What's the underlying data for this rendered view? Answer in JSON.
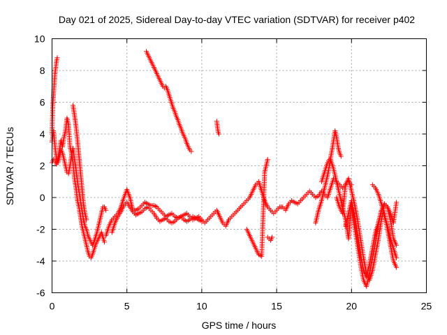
{
  "chart_data": {
    "type": "scatter",
    "title": "Day 021 of 2025, Sidereal Day-to-day VTEC variation (SDTVAR) for receiver p402",
    "xlabel": "GPS time / hours",
    "ylabel": "SDTVAR / TECUs",
    "xlim": [
      0,
      25
    ],
    "ylim": [
      -6,
      10
    ],
    "xticks": [
      0,
      5,
      10,
      15,
      20,
      25
    ],
    "yticks": [
      -6,
      -4,
      -2,
      0,
      2,
      4,
      6,
      8,
      10
    ],
    "grid": true,
    "marker": "+",
    "color": "#ff0000",
    "series": [
      {
        "name": "s1",
        "x": [
          0.0,
          0.05,
          0.1,
          0.15,
          0.2,
          0.25,
          0.3,
          0.35
        ],
        "y": [
          4.0,
          5.8,
          6.5,
          7.2,
          7.8,
          8.2,
          8.6,
          8.8
        ]
      },
      {
        "name": "s2",
        "x": [
          0.0,
          0.1,
          0.2,
          0.3,
          0.4,
          0.5,
          0.6,
          0.7,
          0.8,
          0.9,
          1.0,
          1.1,
          1.2,
          1.3,
          1.4,
          1.5,
          1.6,
          1.7,
          1.8,
          1.9,
          2.0,
          2.1,
          2.2,
          2.3,
          2.4,
          2.5,
          2.6,
          2.7,
          2.8,
          2.9,
          3.0,
          3.1,
          3.2,
          3.3,
          3.4,
          3.5
        ],
        "y": [
          2.2,
          2.4,
          2.3,
          2.1,
          2.5,
          3.0,
          3.6,
          3.2,
          3.8,
          4.2,
          5.0,
          4.6,
          3.2,
          2.8,
          2.2,
          1.2,
          0.6,
          -0.2,
          -0.6,
          -1.2,
          -1.8,
          -2.2,
          -2.6,
          -3.0,
          -3.4,
          -3.7,
          -3.8,
          -3.6,
          -3.3,
          -3.0,
          -2.8,
          -2.6,
          -2.4,
          -2.2,
          -2.5,
          -2.8
        ]
      },
      {
        "name": "s3",
        "x": [
          0.0,
          0.1,
          0.2,
          0.3,
          0.4,
          0.5,
          0.6,
          0.7,
          0.8,
          0.9,
          1.0,
          1.1,
          1.2,
          1.3,
          1.4,
          1.5,
          1.6,
          1.7,
          1.8,
          1.9,
          2.0,
          2.1,
          2.2,
          2.3,
          2.4,
          2.5,
          2.6,
          2.7,
          2.8,
          2.9,
          3.0,
          3.1,
          3.2,
          3.3,
          3.4,
          3.5,
          3.6
        ],
        "y": [
          3.5,
          4.2,
          3.2,
          2.4,
          2.2,
          2.6,
          3.0,
          2.8,
          2.4,
          2.0,
          1.6,
          1.5,
          2.0,
          2.6,
          3.1,
          2.4,
          1.8,
          1.0,
          0.4,
          -0.2,
          -0.8,
          -1.4,
          -1.8,
          -2.0,
          -2.4,
          -2.6,
          -2.8,
          -3.0,
          -2.8,
          -2.5,
          -2.2,
          -1.8,
          -1.4,
          -1.0,
          -0.6,
          -0.6,
          -0.8
        ]
      },
      {
        "name": "s4",
        "x": [
          1.4,
          1.5,
          1.6,
          1.7,
          1.8,
          1.9,
          2.0,
          2.1,
          2.2,
          2.3
        ],
        "y": [
          5.8,
          5.2,
          4.5,
          3.6,
          2.6,
          1.6,
          0.6,
          -0.4,
          -1.0,
          -1.4
        ]
      },
      {
        "name": "s5",
        "x": [
          3.6,
          3.8,
          4.0,
          4.2,
          4.4,
          4.6,
          4.8,
          5.0,
          5.2,
          5.4,
          5.6,
          5.8,
          6.0,
          6.2,
          6.4,
          6.6,
          6.8,
          7.0,
          7.2,
          7.4,
          7.6,
          7.8,
          8.0,
          8.2,
          8.4,
          8.6,
          8.8,
          9.0,
          9.2,
          9.4,
          9.6,
          9.8,
          10.0,
          10.2,
          10.4,
          10.6,
          10.8,
          11.0,
          11.2,
          11.4,
          11.6,
          11.8,
          12.0,
          12.2,
          12.4,
          12.6,
          12.8,
          13.0,
          13.2,
          13.4,
          13.6,
          13.8,
          14.0,
          14.2,
          14.4,
          14.6,
          14.8,
          15.0,
          15.2,
          15.4,
          15.6,
          15.8,
          16.0,
          16.2,
          16.4,
          16.6,
          16.8,
          17.0,
          17.2,
          17.4,
          17.6,
          17.8,
          18.0,
          18.2,
          18.4,
          18.6,
          18.8,
          19.0,
          19.2,
          19.4,
          19.6,
          19.8,
          20.0
        ],
        "y": [
          -2.4,
          -1.8,
          -1.4,
          -1.2,
          -1.0,
          -0.6,
          0.0,
          0.5,
          0.0,
          -0.8,
          -0.8,
          -0.7,
          -0.5,
          -0.3,
          -0.4,
          -0.5,
          -0.5,
          -0.6,
          -0.8,
          -1.0,
          -1.2,
          -1.1,
          -1.0,
          -1.2,
          -1.3,
          -1.2,
          -1.1,
          -1.0,
          -1.2,
          -1.4,
          -1.3,
          -1.2,
          -1.4,
          -1.6,
          -1.4,
          -1.2,
          -1.0,
          -0.8,
          -1.2,
          -1.6,
          -1.8,
          -1.4,
          -1.2,
          -1.0,
          -0.8,
          -0.6,
          -0.4,
          -0.2,
          0.0,
          0.4,
          0.8,
          1.0,
          0.4,
          -0.2,
          -0.6,
          -0.8,
          -1.0,
          -0.8,
          -0.6,
          -0.6,
          -0.8,
          -0.4,
          -0.2,
          -0.3,
          -0.4,
          -0.2,
          0.0,
          0.2,
          0.4,
          0.2,
          0.0,
          0.1,
          0.4,
          0.2,
          0.0,
          0.6,
          1.2,
          1.0,
          0.8,
          0.6,
          0.8,
          1.0,
          0.8
        ]
      },
      {
        "name": "s6",
        "x": [
          4.0,
          4.2,
          4.4,
          4.6,
          4.8,
          5.0,
          5.2,
          5.4,
          5.6,
          5.8,
          6.0,
          6.2,
          6.4,
          6.6,
          6.8,
          7.0,
          7.2,
          7.4,
          7.6,
          7.8,
          8.0,
          8.2,
          8.4,
          8.6,
          8.8,
          9.0,
          9.2,
          9.4,
          9.6,
          9.8,
          10.0
        ],
        "y": [
          -2.2,
          -1.6,
          -1.2,
          -0.9,
          -0.5,
          -0.3,
          -0.6,
          -0.9,
          -1.1,
          -1.0,
          -0.9,
          -0.7,
          -0.6,
          -0.8,
          -1.0,
          -1.3,
          -1.5,
          -1.4,
          -1.3,
          -1.5,
          -1.6,
          -1.5,
          -1.3,
          -1.2,
          -1.4,
          -1.5,
          -1.4,
          -1.2,
          -1.3,
          -1.4,
          -1.5
        ]
      },
      {
        "name": "s7",
        "x": [
          6.3,
          6.4,
          6.5,
          6.6,
          6.7,
          6.8,
          6.9,
          7.0,
          7.1,
          7.2,
          7.3,
          7.4,
          7.5,
          7.6,
          7.7,
          7.8,
          7.9,
          8.0,
          8.1,
          8.2,
          8.3,
          8.4,
          8.5,
          8.6,
          8.7,
          8.8,
          8.9,
          9.0,
          9.1,
          9.2,
          9.3
        ],
        "y": [
          9.2,
          9.0,
          8.8,
          8.6,
          8.4,
          8.2,
          8.0,
          7.8,
          7.6,
          7.4,
          7.2,
          7.0,
          6.9,
          7.0,
          6.8,
          6.5,
          6.2,
          5.9,
          5.6,
          5.4,
          5.1,
          4.9,
          4.6,
          4.4,
          4.1,
          3.9,
          3.7,
          3.4,
          3.2,
          3.0,
          2.9
        ]
      },
      {
        "name": "s8",
        "x": [
          11.0,
          11.05,
          11.1,
          11.15
        ],
        "y": [
          4.8,
          4.4,
          4.1,
          4.0
        ]
      },
      {
        "name": "s9",
        "x": [
          13.0,
          13.2,
          13.4,
          13.6,
          13.8,
          14.0,
          14.2,
          14.4
        ],
        "y": [
          -2.0,
          -2.4,
          -2.8,
          -3.2,
          -3.6,
          -3.7,
          1.6,
          2.4
        ]
      },
      {
        "name": "s10",
        "x": [
          14.4,
          14.5,
          14.6,
          14.7
        ],
        "y": [
          -2.5,
          -2.6,
          -2.7,
          -2.5
        ]
      },
      {
        "name": "s11",
        "x": [
          18.0,
          18.2,
          18.4,
          18.6,
          18.7,
          18.8,
          18.9,
          19.0,
          19.1,
          19.2,
          19.3
        ],
        "y": [
          1.0,
          1.6,
          2.2,
          2.5,
          3.0,
          3.6,
          4.2,
          3.8,
          3.2,
          2.8,
          2.6
        ]
      },
      {
        "name": "s12",
        "x": [
          17.6,
          17.8,
          18.0,
          18.2,
          18.4,
          18.6,
          18.8,
          19.0,
          19.2,
          19.4,
          19.6,
          19.8,
          20.0,
          20.2,
          20.4,
          20.6,
          20.8,
          21.0,
          21.2,
          21.4,
          21.6,
          21.8,
          22.0,
          22.2,
          22.4,
          22.6,
          22.8,
          23.0
        ],
        "y": [
          -1.6,
          -0.8,
          -0.2,
          0.6,
          1.4,
          2.4,
          1.8,
          1.0,
          0.2,
          -0.6,
          -1.4,
          -2.6,
          -0.4,
          -1.8,
          -3.0,
          -4.2,
          -5.2,
          -5.6,
          -4.8,
          -3.8,
          -2.8,
          -1.6,
          -0.8,
          -1.0,
          -2.0,
          -3.0,
          -4.0,
          -4.4
        ]
      },
      {
        "name": "s13",
        "x": [
          19.0,
          19.2,
          19.4,
          19.6,
          19.8,
          20.0,
          20.2,
          20.4,
          20.6,
          20.8,
          21.0,
          21.2,
          21.4,
          21.6,
          21.8,
          22.0,
          22.2,
          22.4,
          22.6,
          22.8,
          23.0
        ],
        "y": [
          0.0,
          -0.6,
          -1.0,
          0.8,
          1.2,
          0.4,
          -0.4,
          -1.4,
          -2.6,
          -3.8,
          -4.8,
          -5.2,
          -4.6,
          -3.6,
          -2.6,
          -1.4,
          -0.4,
          -0.6,
          -1.4,
          -2.6,
          -3.0
        ]
      },
      {
        "name": "s14",
        "x": [
          21.4,
          21.6,
          21.8,
          22.0,
          22.2,
          22.4,
          22.6,
          22.8,
          23.0
        ],
        "y": [
          0.8,
          0.6,
          0.2,
          -0.4,
          -1.2,
          -1.8,
          -2.6,
          -3.2,
          -3.8
        ]
      },
      {
        "name": "s15",
        "x": [
          19.6,
          19.8,
          20.0,
          20.2,
          20.4,
          20.6,
          20.8,
          21.0,
          21.2,
          21.4,
          21.6,
          21.8,
          22.0,
          22.2,
          22.4,
          22.6,
          22.8,
          23.0
        ],
        "y": [
          -1.8,
          -1.0,
          -0.2,
          -1.2,
          -2.4,
          -3.6,
          -4.6,
          -5.0,
          -4.2,
          -3.2,
          -2.2,
          -1.6,
          -0.8,
          -0.4,
          -0.6,
          -1.0,
          -1.6,
          -0.3
        ]
      }
    ]
  }
}
